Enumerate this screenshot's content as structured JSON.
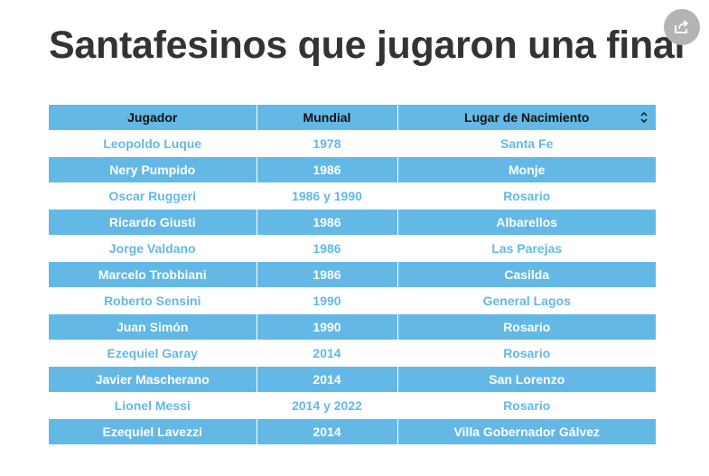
{
  "title": "Santafesinos que jugaron una final",
  "colors": {
    "accent": "#63b8e5",
    "title": "#333333",
    "share_button": "#b4b4b4"
  },
  "table": {
    "headers": [
      "Jugador",
      "Mundial",
      "Lugar de Nacimiento"
    ],
    "rows": [
      [
        "Leopoldo Luque",
        "1978",
        "Santa Fe"
      ],
      [
        "Nery Pumpido",
        "1986",
        "Monje"
      ],
      [
        "Oscar Ruggeri",
        "1986 y 1990",
        "Rosario"
      ],
      [
        "Ricardo Giusti",
        "1986",
        "Albarellos"
      ],
      [
        "Jorge Valdano",
        "1986",
        "Las Parejas"
      ],
      [
        "Marcelo Trobbiani",
        "1986",
        "Casilda"
      ],
      [
        "Roberto Sensini",
        "1990",
        "General Lagos"
      ],
      [
        "Juan Simón",
        "1990",
        "Rosario"
      ],
      [
        "Ezequiel Garay",
        "2014",
        "Rosario"
      ],
      [
        "Javier Mascherano",
        "2014",
        "San Lorenzo"
      ],
      [
        "Lionel Messi",
        "2014 y 2022",
        "Rosario"
      ],
      [
        "Ezequiel Lavezzi",
        "2014",
        "Villa Gobernador Gálvez"
      ]
    ]
  },
  "icons": {
    "share": "share-icon",
    "sort": "sort-icon"
  }
}
